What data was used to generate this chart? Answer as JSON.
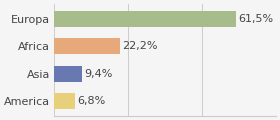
{
  "categories": [
    "Europa",
    "Africa",
    "Asia",
    "America"
  ],
  "values": [
    61.5,
    22.2,
    9.4,
    6.8
  ],
  "labels": [
    "61,5%",
    "22,2%",
    "9,4%",
    "6,8%"
  ],
  "bar_colors": [
    "#a8bb8a",
    "#e8a97a",
    "#6878b0",
    "#e8d07a"
  ],
  "background_color": "#f5f5f5",
  "xlim": [
    0,
    75
  ],
  "bar_height": 0.58,
  "label_fontsize": 8.0,
  "tick_fontsize": 8.0
}
